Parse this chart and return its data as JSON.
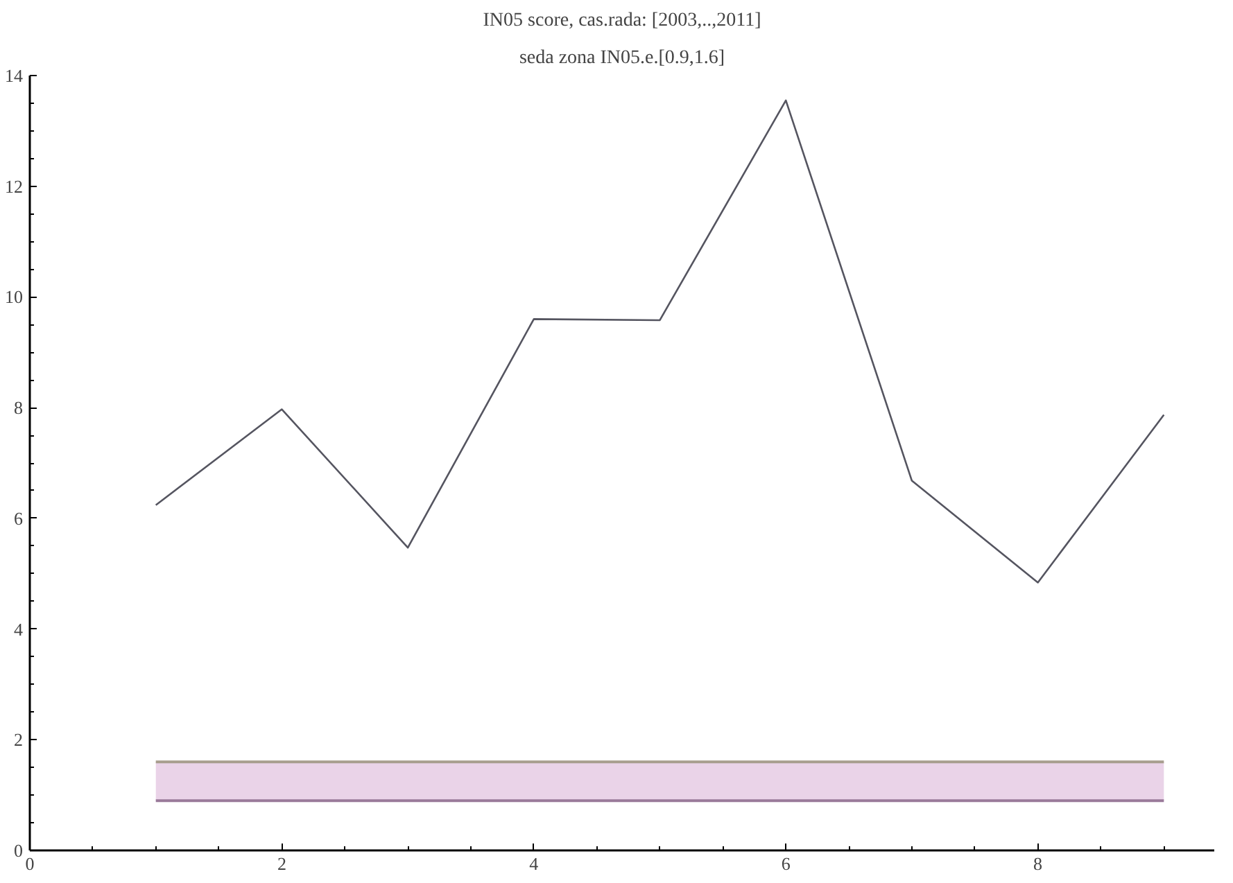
{
  "chart_data": {
    "type": "line",
    "title": "IN05 score, cas.rada: [2003,..,2011]",
    "subtitle": "seda zona IN05.e.[0.9,1.6]",
    "x": [
      1,
      2,
      3,
      4,
      5,
      6,
      7,
      8,
      9
    ],
    "series": [
      {
        "color": "#555560",
        "values": [
          6.24,
          7.97,
          5.47,
          9.6,
          9.58,
          13.55,
          6.68,
          4.84,
          7.87
        ]
      }
    ],
    "xlim": [
      0,
      9.4
    ],
    "xticks": [
      0,
      2,
      4,
      6,
      8
    ],
    "ylim": [
      0,
      14
    ],
    "yticks": [
      0,
      2,
      4,
      6,
      8,
      10,
      12,
      14
    ],
    "bands": [
      {
        "axis": "y",
        "from": 0.9,
        "to": 1.6,
        "color": "#ead3e8"
      }
    ],
    "ref_lines": [
      {
        "axis": "y",
        "value": 1.6,
        "color": "#a89e8e",
        "line_style": "solid"
      },
      {
        "axis": "y",
        "value": 0.9,
        "color": "#9a7a9a",
        "line_style": "solid"
      }
    ],
    "grid": false,
    "marker": "none",
    "line_style": "solid"
  }
}
